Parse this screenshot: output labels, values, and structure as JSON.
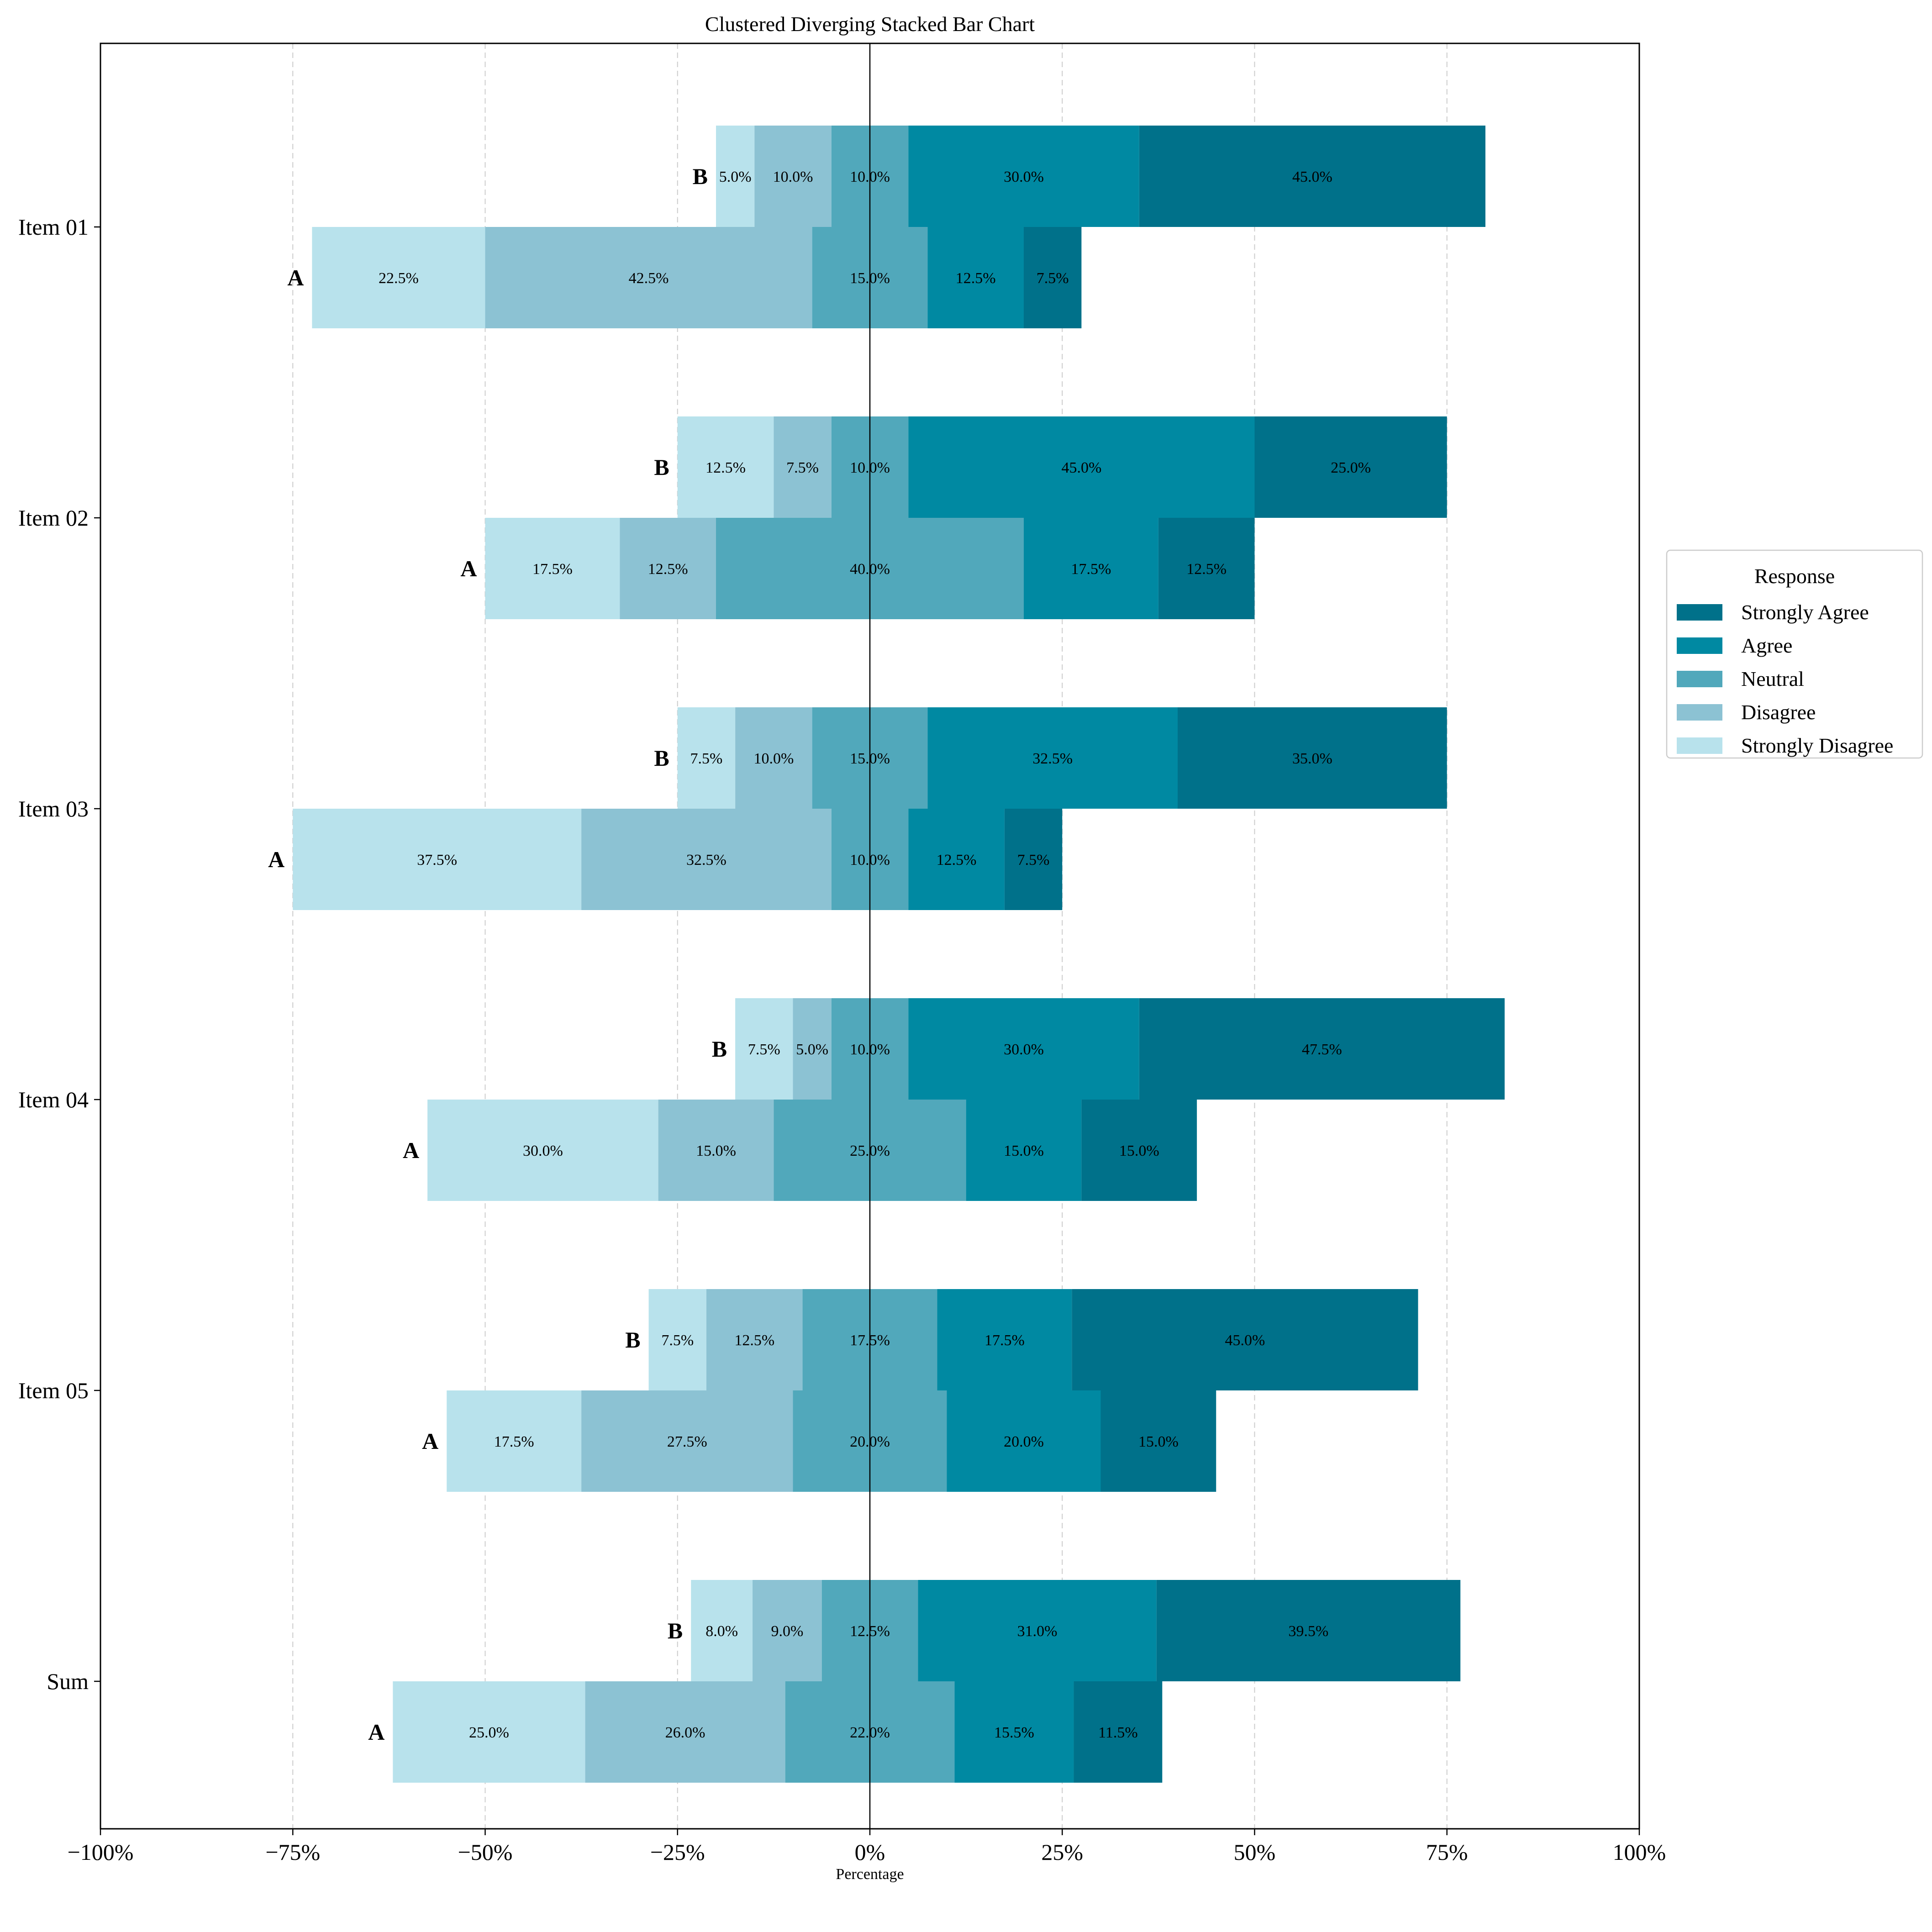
{
  "chart_data": {
    "type": "bar",
    "title": "Clustered Diverging Stacked Bar Chart",
    "xlabel": "Percentage",
    "ylabel": "",
    "xlim": [
      -100,
      100
    ],
    "xticks": [
      -100,
      -75,
      -50,
      -25,
      0,
      25,
      50,
      75,
      100
    ],
    "xtick_labels": [
      "−100%",
      "−75%",
      "−50%",
      "−25%",
      "0%",
      "25%",
      "50%",
      "75%",
      "100%"
    ],
    "grid": "vertical dashed",
    "legend": {
      "title": "Response",
      "placement": "right",
      "entries": [
        "Strongly Agree",
        "Agree",
        "Neutral",
        "Disagree",
        "Strongly Disagree"
      ]
    },
    "responses": [
      "Strongly Disagree",
      "Disagree",
      "Neutral",
      "Agree",
      "Strongly Agree"
    ],
    "colors": {
      "Strongly Disagree": "#b8e2ec",
      "Disagree": "#8cc2d3",
      "Neutral": "#51a8bb",
      "Agree": "#0089a2",
      "Strongly Agree": "#00718a"
    },
    "categories": [
      "Item 01",
      "Item 02",
      "Item 03",
      "Item 04",
      "Item 05",
      "Sum"
    ],
    "groups": [
      "B",
      "A"
    ],
    "data": [
      {
        "item": "Item 01",
        "B": [
          5.0,
          10.0,
          10.0,
          30.0,
          45.0
        ],
        "A": [
          22.5,
          42.5,
          15.0,
          12.5,
          7.5
        ]
      },
      {
        "item": "Item 02",
        "B": [
          12.5,
          7.5,
          10.0,
          45.0,
          25.0
        ],
        "A": [
          17.5,
          12.5,
          40.0,
          17.5,
          12.5
        ]
      },
      {
        "item": "Item 03",
        "B": [
          7.5,
          10.0,
          15.0,
          32.5,
          35.0
        ],
        "A": [
          37.5,
          32.5,
          10.0,
          12.5,
          7.5
        ]
      },
      {
        "item": "Item 04",
        "B": [
          7.5,
          5.0,
          10.0,
          30.0,
          47.5
        ],
        "A": [
          30.0,
          15.0,
          25.0,
          15.0,
          15.0
        ]
      },
      {
        "item": "Item 05",
        "B": [
          7.5,
          12.5,
          17.5,
          17.5,
          45.0
        ],
        "A": [
          17.5,
          27.5,
          20.0,
          20.0,
          15.0
        ]
      },
      {
        "item": "Sum",
        "B": [
          8.0,
          9.0,
          12.5,
          31.0,
          39.5
        ],
        "A": [
          25.0,
          26.0,
          22.0,
          15.5,
          11.5
        ]
      }
    ]
  }
}
